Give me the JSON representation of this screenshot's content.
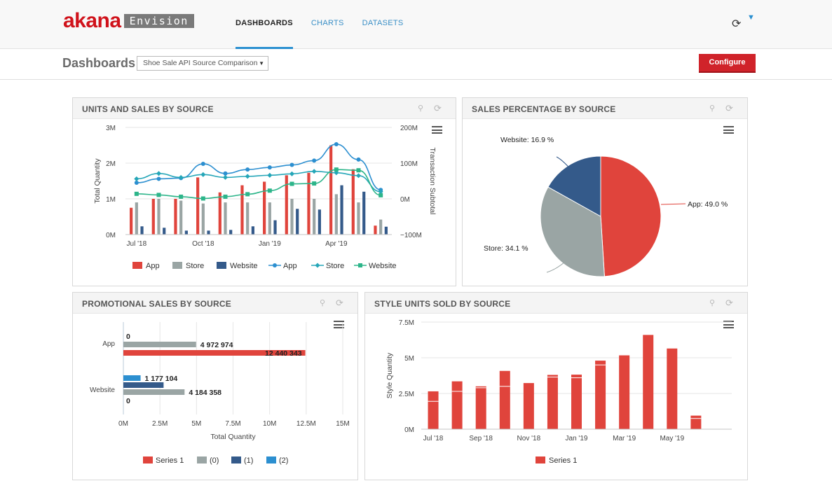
{
  "app": {
    "logo_word": "akana",
    "logo_product": "Envision",
    "nav": [
      "DASHBOARDS",
      "CHARTS",
      "DATASETS"
    ],
    "icons": [
      "refresh-icon",
      "chevron-down-icon"
    ]
  },
  "subbar": {
    "title": "Dashboards",
    "select_value": "Shoe Sale API Source Comparison",
    "configure_label": "Configure"
  },
  "colors": {
    "app": "#e0443c",
    "store": "#9aa5a4",
    "website": "#345a8a",
    "app_line": "#2c8fd0",
    "store_line": "#25a6b8",
    "website_line": "#2db58a",
    "accent": "#d0232a"
  },
  "panels": {
    "units_sales": "UNITS AND SALES BY SOURCE",
    "sales_pct": "SALES PERCENTAGE BY SOURCE",
    "promo": "PROMOTIONAL SALES BY SOURCE",
    "style_units": "STYLE UNITS SOLD BY SOURCE"
  },
  "chart_data": [
    {
      "type": "bar",
      "title": "UNITS AND SALES BY SOURCE",
      "ylabel": "Total Quantity",
      "y2label": "Transaction Subtotal",
      "ylim": [
        0,
        3000000
      ],
      "y2lim": [
        -100000000,
        200000000
      ],
      "yticks": [
        "0M",
        "1M",
        "2M",
        "3M"
      ],
      "y2ticks": [
        "−100M",
        "0M",
        "100M",
        "200M"
      ],
      "xtick_labels": [
        "Jul '18",
        "Oct '18",
        "Jan '19",
        "Apr '19"
      ],
      "xtick_index": [
        0,
        3,
        6,
        9
      ],
      "legend": [
        "App",
        "Store",
        "Website",
        "App",
        "Store",
        "Website"
      ],
      "categories": [
        "Jul '18",
        "Aug '18",
        "Sep '18",
        "Oct '18",
        "Nov '18",
        "Dec '18",
        "Jan '19",
        "Feb '19",
        "Mar '19",
        "Apr '19",
        "May '19",
        "Jun '19"
      ],
      "series": [
        {
          "name": "App",
          "kind": "bar",
          "values": [
            750000,
            1000000,
            1000000,
            1600000,
            1180000,
            1380000,
            1480000,
            1660000,
            1730000,
            2500000,
            1830000,
            250000
          ]
        },
        {
          "name": "Store",
          "kind": "bar",
          "values": [
            900000,
            1000000,
            950000,
            870000,
            900000,
            900000,
            900000,
            1000000,
            1000000,
            1130000,
            900000,
            420000
          ]
        },
        {
          "name": "Website",
          "kind": "bar",
          "values": [
            230000,
            190000,
            110000,
            110000,
            130000,
            230000,
            400000,
            720000,
            700000,
            1380000,
            1200000,
            220000
          ]
        },
        {
          "name": "App",
          "kind": "line",
          "values": [
            45000000,
            56000000,
            58000000,
            98000000,
            71000000,
            82000000,
            88000000,
            95000000,
            107000000,
            153000000,
            110000000,
            25000000
          ]
        },
        {
          "name": "Store",
          "kind": "line",
          "values": [
            56000000,
            71000000,
            60000000,
            68000000,
            60000000,
            63000000,
            66000000,
            70000000,
            77000000,
            73000000,
            65000000,
            20000000
          ]
        },
        {
          "name": "Website",
          "kind": "line",
          "values": [
            14000000,
            11000000,
            6000000,
            1000000,
            6000000,
            13000000,
            23000000,
            42000000,
            43000000,
            82000000,
            80000000,
            10000000
          ]
        }
      ]
    },
    {
      "type": "pie",
      "title": "SALES PERCENTAGE BY SOURCE",
      "series": [
        {
          "name": "App",
          "value": 49.0
        },
        {
          "name": "Store",
          "value": 34.1
        },
        {
          "name": "Website",
          "value": 16.9
        }
      ],
      "labels": [
        "App: 49.0 %",
        "Store: 34.1 %",
        "Website: 16.9 %"
      ]
    },
    {
      "type": "bar",
      "orientation": "horizontal",
      "title": "PROMOTIONAL SALES BY SOURCE",
      "xlabel": "Total Quantity",
      "xlim": [
        0,
        15000000
      ],
      "xticks": [
        "0M",
        "2.5M",
        "5M",
        "7.5M",
        "10M",
        "12.5M",
        "15M"
      ],
      "categories": [
        "App",
        "Website"
      ],
      "legend": [
        "Series 1",
        "(0)",
        "(1)",
        "(2)"
      ],
      "bars": [
        {
          "category": "App",
          "series": "(2)",
          "value": 0,
          "label": "0"
        },
        {
          "category": "App",
          "series": "(0)",
          "value": 4972974,
          "label": "4 972 974"
        },
        {
          "category": "App",
          "series": "Series 1",
          "value": 12440343,
          "label": "12 440 343"
        },
        {
          "category": "Website",
          "series": "(2)",
          "value": 1177104,
          "label": "1 177 104"
        },
        {
          "category": "Website",
          "series": "(1)",
          "value": 2750000,
          "label": ""
        },
        {
          "category": "Website",
          "series": "(0)",
          "value": 4184358,
          "label": "4 184 358"
        },
        {
          "category": "Website",
          "series": "Series 1",
          "value": 0,
          "label": "0"
        }
      ]
    },
    {
      "type": "bar",
      "title": "STYLE UNITS SOLD BY SOURCE",
      "ylabel": "Style Quantity",
      "ylim": [
        0,
        7500000
      ],
      "yticks": [
        "0M",
        "2.5M",
        "5M",
        "7.5M"
      ],
      "xtick_labels": [
        "Jul '18",
        "Sep '18",
        "Nov '18",
        "Jan '19",
        "Mar '19",
        "May '19"
      ],
      "xtick_index": [
        0,
        2,
        4,
        6,
        8,
        10
      ],
      "legend": [
        "Series 1"
      ],
      "categories": [
        "Jul '18",
        "Aug '18",
        "Sep '18",
        "Oct '18",
        "Nov '18",
        "Dec '18",
        "Jan '19",
        "Feb '19",
        "Mar '19",
        "Apr '19",
        "May '19",
        "Jun '19",
        "Jul '19"
      ],
      "values": [
        2650000,
        3350000,
        3000000,
        4080000,
        3230000,
        3800000,
        3820000,
        4800000,
        5170000,
        6600000,
        5650000,
        950000,
        0
      ],
      "segments": [
        1950000,
        2650000,
        2900000,
        3000000,
        0,
        3650000,
        3600000,
        4500000,
        0,
        0,
        0,
        750000,
        0
      ]
    }
  ]
}
